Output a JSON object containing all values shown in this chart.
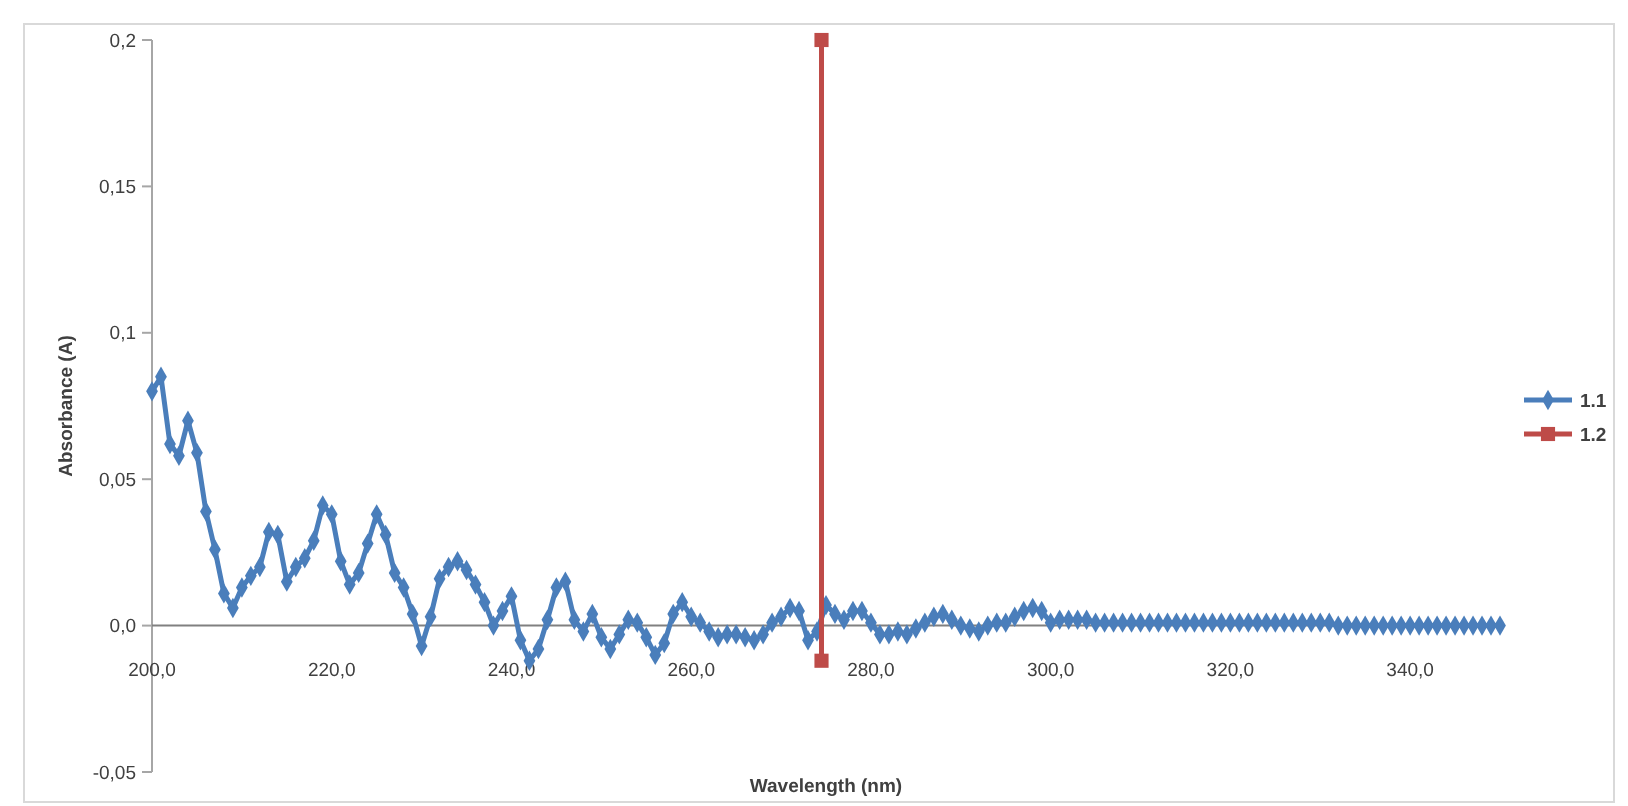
{
  "chart_data": {
    "type": "line",
    "xlabel": "Wavelength (nm)",
    "ylabel": "Absorbance (A)",
    "xlim": [
      200,
      350
    ],
    "ylim": [
      -0.05,
      0.2
    ],
    "xticks": [
      {
        "value": 200,
        "label": "200,0"
      },
      {
        "value": 220,
        "label": "220,0"
      },
      {
        "value": 240,
        "label": "240,0"
      },
      {
        "value": 260,
        "label": "260,0"
      },
      {
        "value": 280,
        "label": "280,0"
      },
      {
        "value": 300,
        "label": "300,0"
      },
      {
        "value": 320,
        "label": "320,0"
      },
      {
        "value": 340,
        "label": "340,0"
      }
    ],
    "yticks": [
      {
        "value": -0.05,
        "label": "-0,05"
      },
      {
        "value": 0,
        "label": "0,0"
      },
      {
        "value": 0.05,
        "label": "0,05"
      },
      {
        "value": 0.1,
        "label": "0,1"
      },
      {
        "value": 0.15,
        "label": "0,15"
      },
      {
        "value": 0.2,
        "label": "0,2"
      }
    ],
    "grid": false,
    "legend": "right",
    "series": [
      {
        "name": "1.1",
        "color": "#4a7ebb",
        "marker": "diamond",
        "x": [
          200,
          201,
          202,
          203,
          204,
          205,
          206,
          207,
          208,
          209,
          210,
          211,
          212,
          213,
          214,
          215,
          216,
          217,
          218,
          219,
          220,
          221,
          222,
          223,
          224,
          225,
          226,
          227,
          228,
          229,
          230,
          231,
          232,
          233,
          234,
          235,
          236,
          237,
          238,
          239,
          240,
          241,
          242,
          243,
          244,
          245,
          246,
          247,
          248,
          249,
          250,
          251,
          252,
          253,
          254,
          255,
          256,
          257,
          258,
          259,
          260,
          261,
          262,
          263,
          264,
          265,
          266,
          267,
          268,
          269,
          270,
          271,
          272,
          273,
          274,
          275,
          276,
          277,
          278,
          279,
          280,
          281,
          282,
          283,
          284,
          285,
          286,
          287,
          288,
          289,
          290,
          291,
          292,
          293,
          294,
          295,
          296,
          297,
          298,
          299,
          300,
          301,
          302,
          303,
          304,
          305,
          306,
          307,
          308,
          309,
          310,
          311,
          312,
          313,
          314,
          315,
          316,
          317,
          318,
          319,
          320,
          321,
          322,
          323,
          324,
          325,
          326,
          327,
          328,
          329,
          330,
          331,
          332,
          333,
          334,
          335,
          336,
          337,
          338,
          339,
          340,
          341,
          342,
          343,
          344,
          345,
          346,
          347,
          348,
          349,
          350
        ],
        "values": [
          0.08,
          0.085,
          0.062,
          0.058,
          0.07,
          0.059,
          0.039,
          0.026,
          0.011,
          0.006,
          0.013,
          0.017,
          0.02,
          0.032,
          0.031,
          0.015,
          0.02,
          0.023,
          0.029,
          0.041,
          0.038,
          0.022,
          0.014,
          0.018,
          0.028,
          0.038,
          0.031,
          0.018,
          0.013,
          0.004,
          -0.007,
          0.003,
          0.016,
          0.02,
          0.022,
          0.019,
          0.014,
          0.008,
          0.0,
          0.005,
          0.01,
          -0.005,
          -0.012,
          -0.008,
          0.002,
          0.013,
          0.015,
          0.002,
          -0.002,
          0.004,
          -0.004,
          -0.008,
          -0.003,
          0.002,
          0.001,
          -0.004,
          -0.01,
          -0.006,
          0.004,
          0.008,
          0.003,
          0.001,
          -0.002,
          -0.004,
          -0.003,
          -0.003,
          -0.004,
          -0.005,
          -0.003,
          0.001,
          0.003,
          0.006,
          0.005,
          -0.005,
          -0.002,
          0.007,
          0.004,
          0.002,
          0.005,
          0.005,
          0.001,
          -0.003,
          -0.003,
          -0.002,
          -0.003,
          -0.001,
          0.001,
          0.003,
          0.004,
          0.002,
          0.0,
          -0.001,
          -0.002,
          0.0,
          0.001,
          0.001,
          0.003,
          0.005,
          0.006,
          0.005,
          0.001,
          0.002,
          0.002,
          0.002,
          0.002,
          0.001,
          0.001,
          0.001,
          0.001,
          0.001,
          0.001,
          0.001,
          0.001,
          0.001,
          0.001,
          0.001,
          0.001,
          0.001,
          0.001,
          0.001,
          0.001,
          0.001,
          0.001,
          0.001,
          0.001,
          0.001,
          0.001,
          0.001,
          0.001,
          0.001,
          0.001,
          0.001,
          0,
          0,
          0,
          0,
          0,
          0,
          0,
          0,
          0,
          0,
          0,
          0,
          0,
          0,
          0,
          0,
          0,
          0,
          0
        ]
      },
      {
        "name": "1.2",
        "color": "#be4b48",
        "marker": "square",
        "x": [
          274.5,
          274.5
        ],
        "values": [
          0.2,
          -0.012
        ]
      }
    ]
  }
}
